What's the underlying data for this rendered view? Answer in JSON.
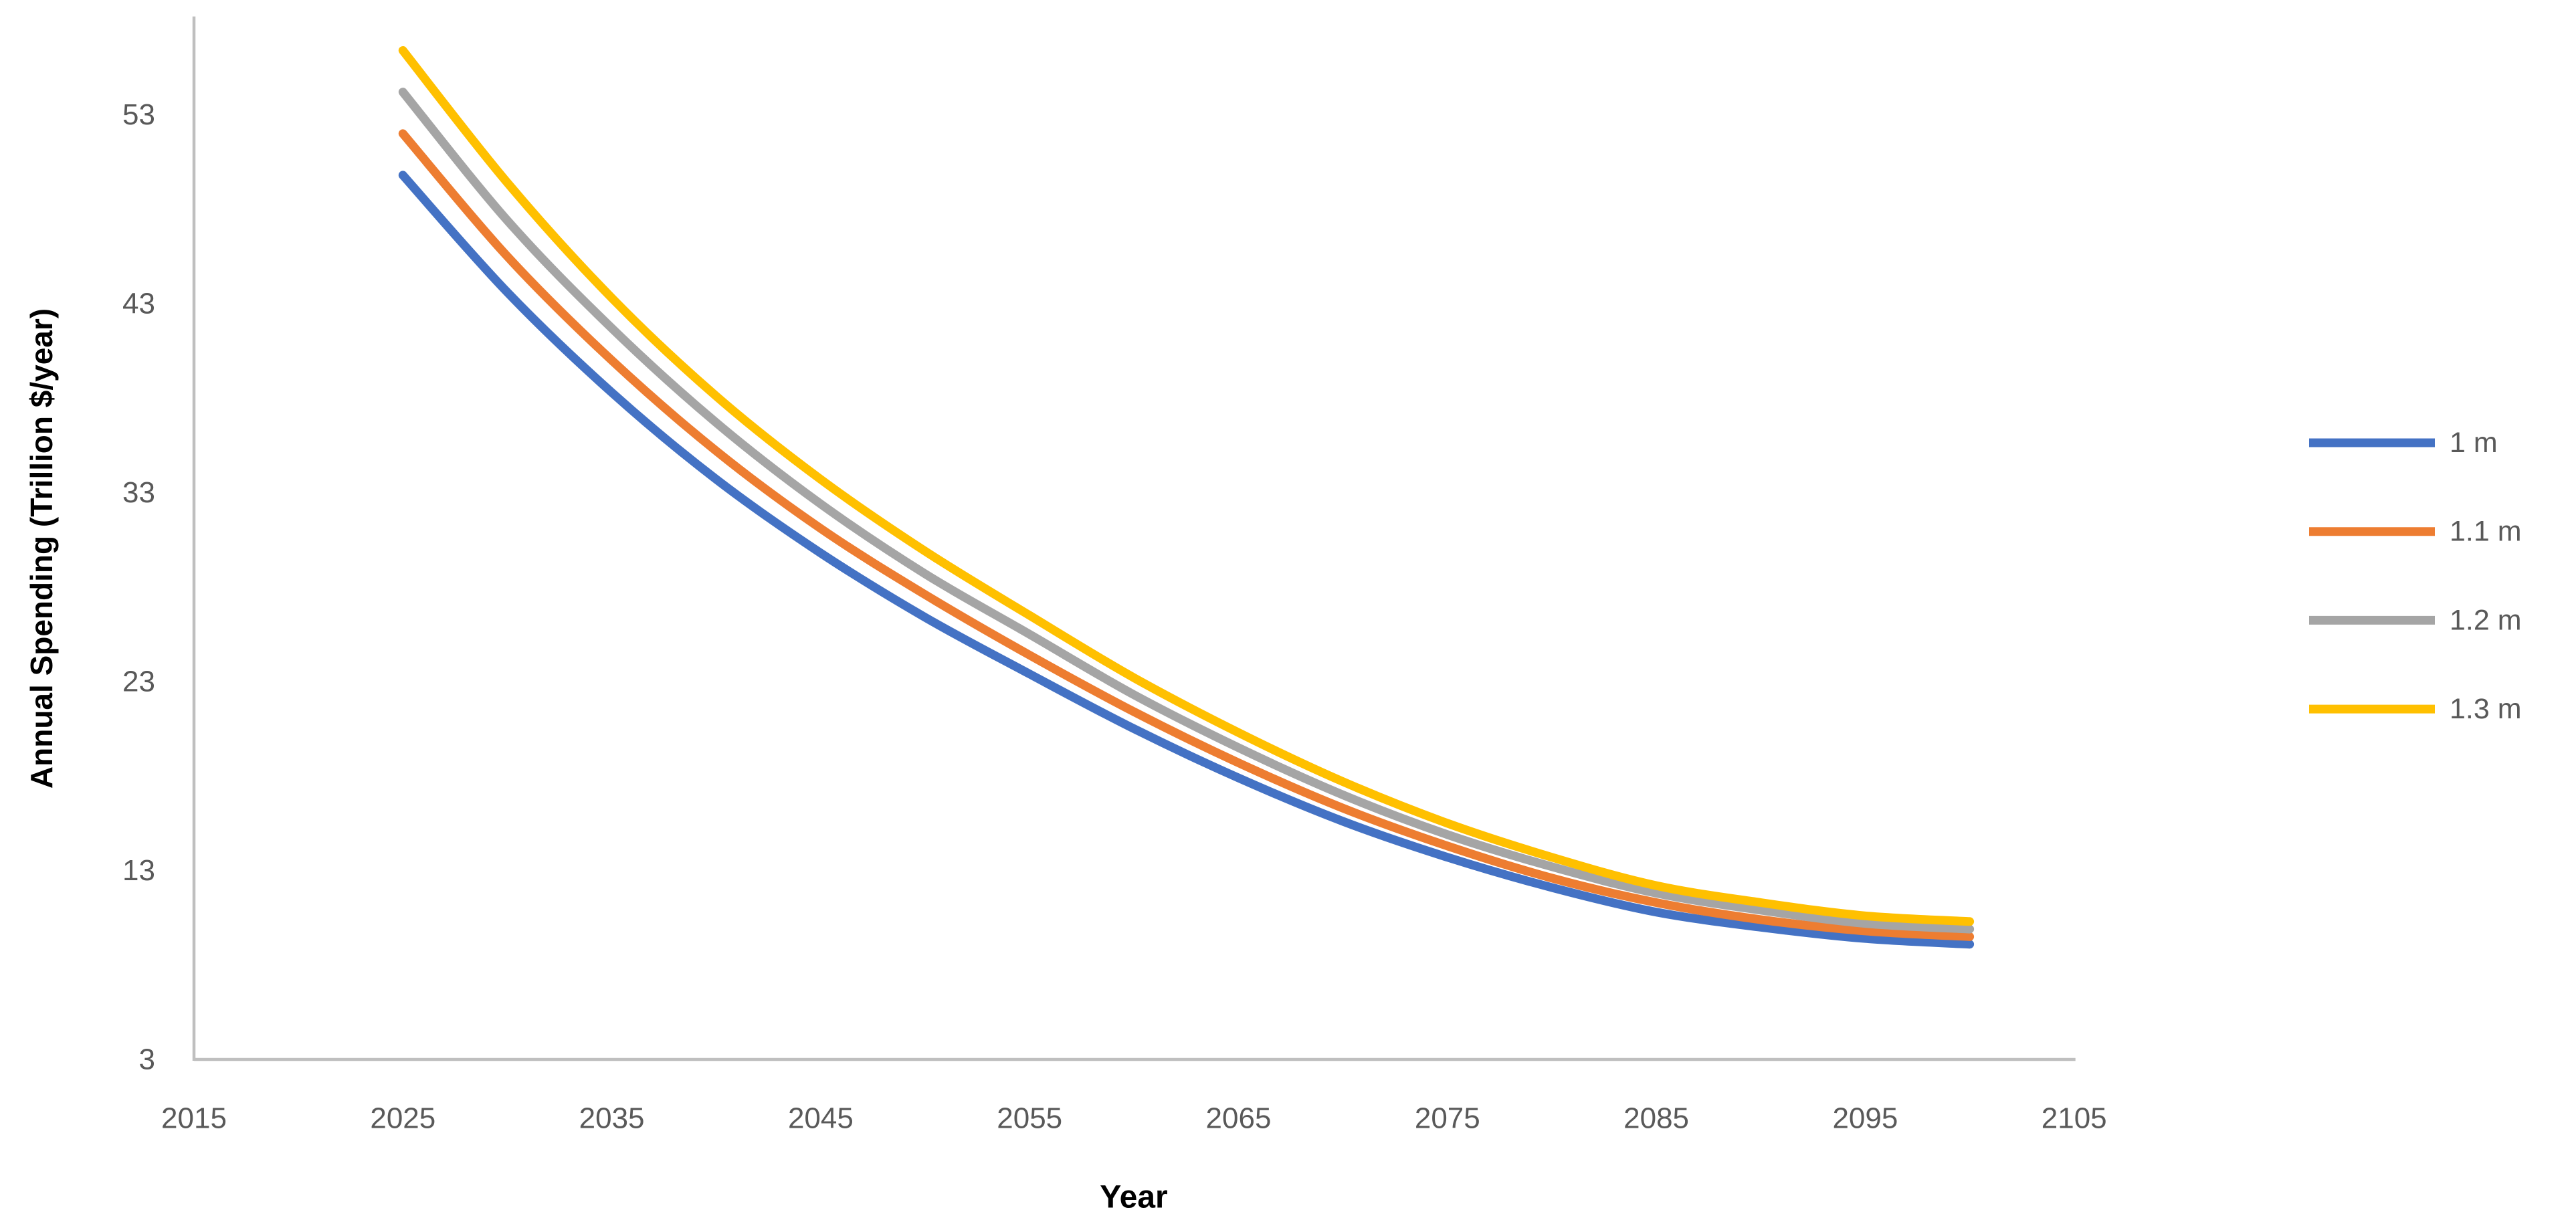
{
  "chart_data": {
    "type": "line",
    "title": "",
    "xlabel": "Year",
    "ylabel": "Annual Spending (Trillion $/year)",
    "xlim": [
      2015,
      2105
    ],
    "ylim": [
      3,
      58.2
    ],
    "x_ticks": [
      2015,
      2025,
      2035,
      2045,
      2055,
      2065,
      2075,
      2085,
      2095,
      2105
    ],
    "y_ticks": [
      3,
      13,
      23,
      33,
      43,
      53
    ],
    "grid": false,
    "legend_position": "right",
    "x": [
      2025,
      2030,
      2035,
      2040,
      2045,
      2050,
      2055,
      2060,
      2065,
      2070,
      2075,
      2080,
      2085,
      2090,
      2095,
      2100
    ],
    "series": [
      {
        "name": "1 m",
        "color": "#4472C4",
        "values": [
          49.8,
          43.6,
          38.3,
          33.7,
          29.8,
          26.4,
          23.4,
          20.5,
          17.9,
          15.6,
          13.7,
          12.1,
          10.8,
          10.0,
          9.4,
          9.1
        ]
      },
      {
        "name": "1.1 m",
        "color": "#ED7D31",
        "values": [
          52.0,
          45.5,
          40.0,
          35.2,
          31.1,
          27.6,
          24.4,
          21.4,
          18.7,
          16.3,
          14.3,
          12.6,
          11.3,
          10.4,
          9.8,
          9.5
        ]
      },
      {
        "name": "1.2 m",
        "color": "#A5A5A5",
        "values": [
          54.2,
          47.4,
          41.7,
          36.7,
          32.4,
          28.7,
          25.5,
          22.3,
          19.5,
          17.0,
          14.9,
          13.2,
          11.8,
          10.9,
          10.2,
          9.9
        ]
      },
      {
        "name": "1.3 m",
        "color": "#FFC000",
        "values": [
          56.4,
          49.4,
          43.3,
          38.1,
          33.7,
          29.9,
          26.5,
          23.2,
          20.3,
          17.7,
          15.5,
          13.7,
          12.2,
          11.3,
          10.6,
          10.3
        ]
      }
    ],
    "axis_color": "#BFBFBF",
    "tick_label_color": "#595959",
    "legend_label_color": "#595959",
    "axis_title_color": "#000000"
  }
}
